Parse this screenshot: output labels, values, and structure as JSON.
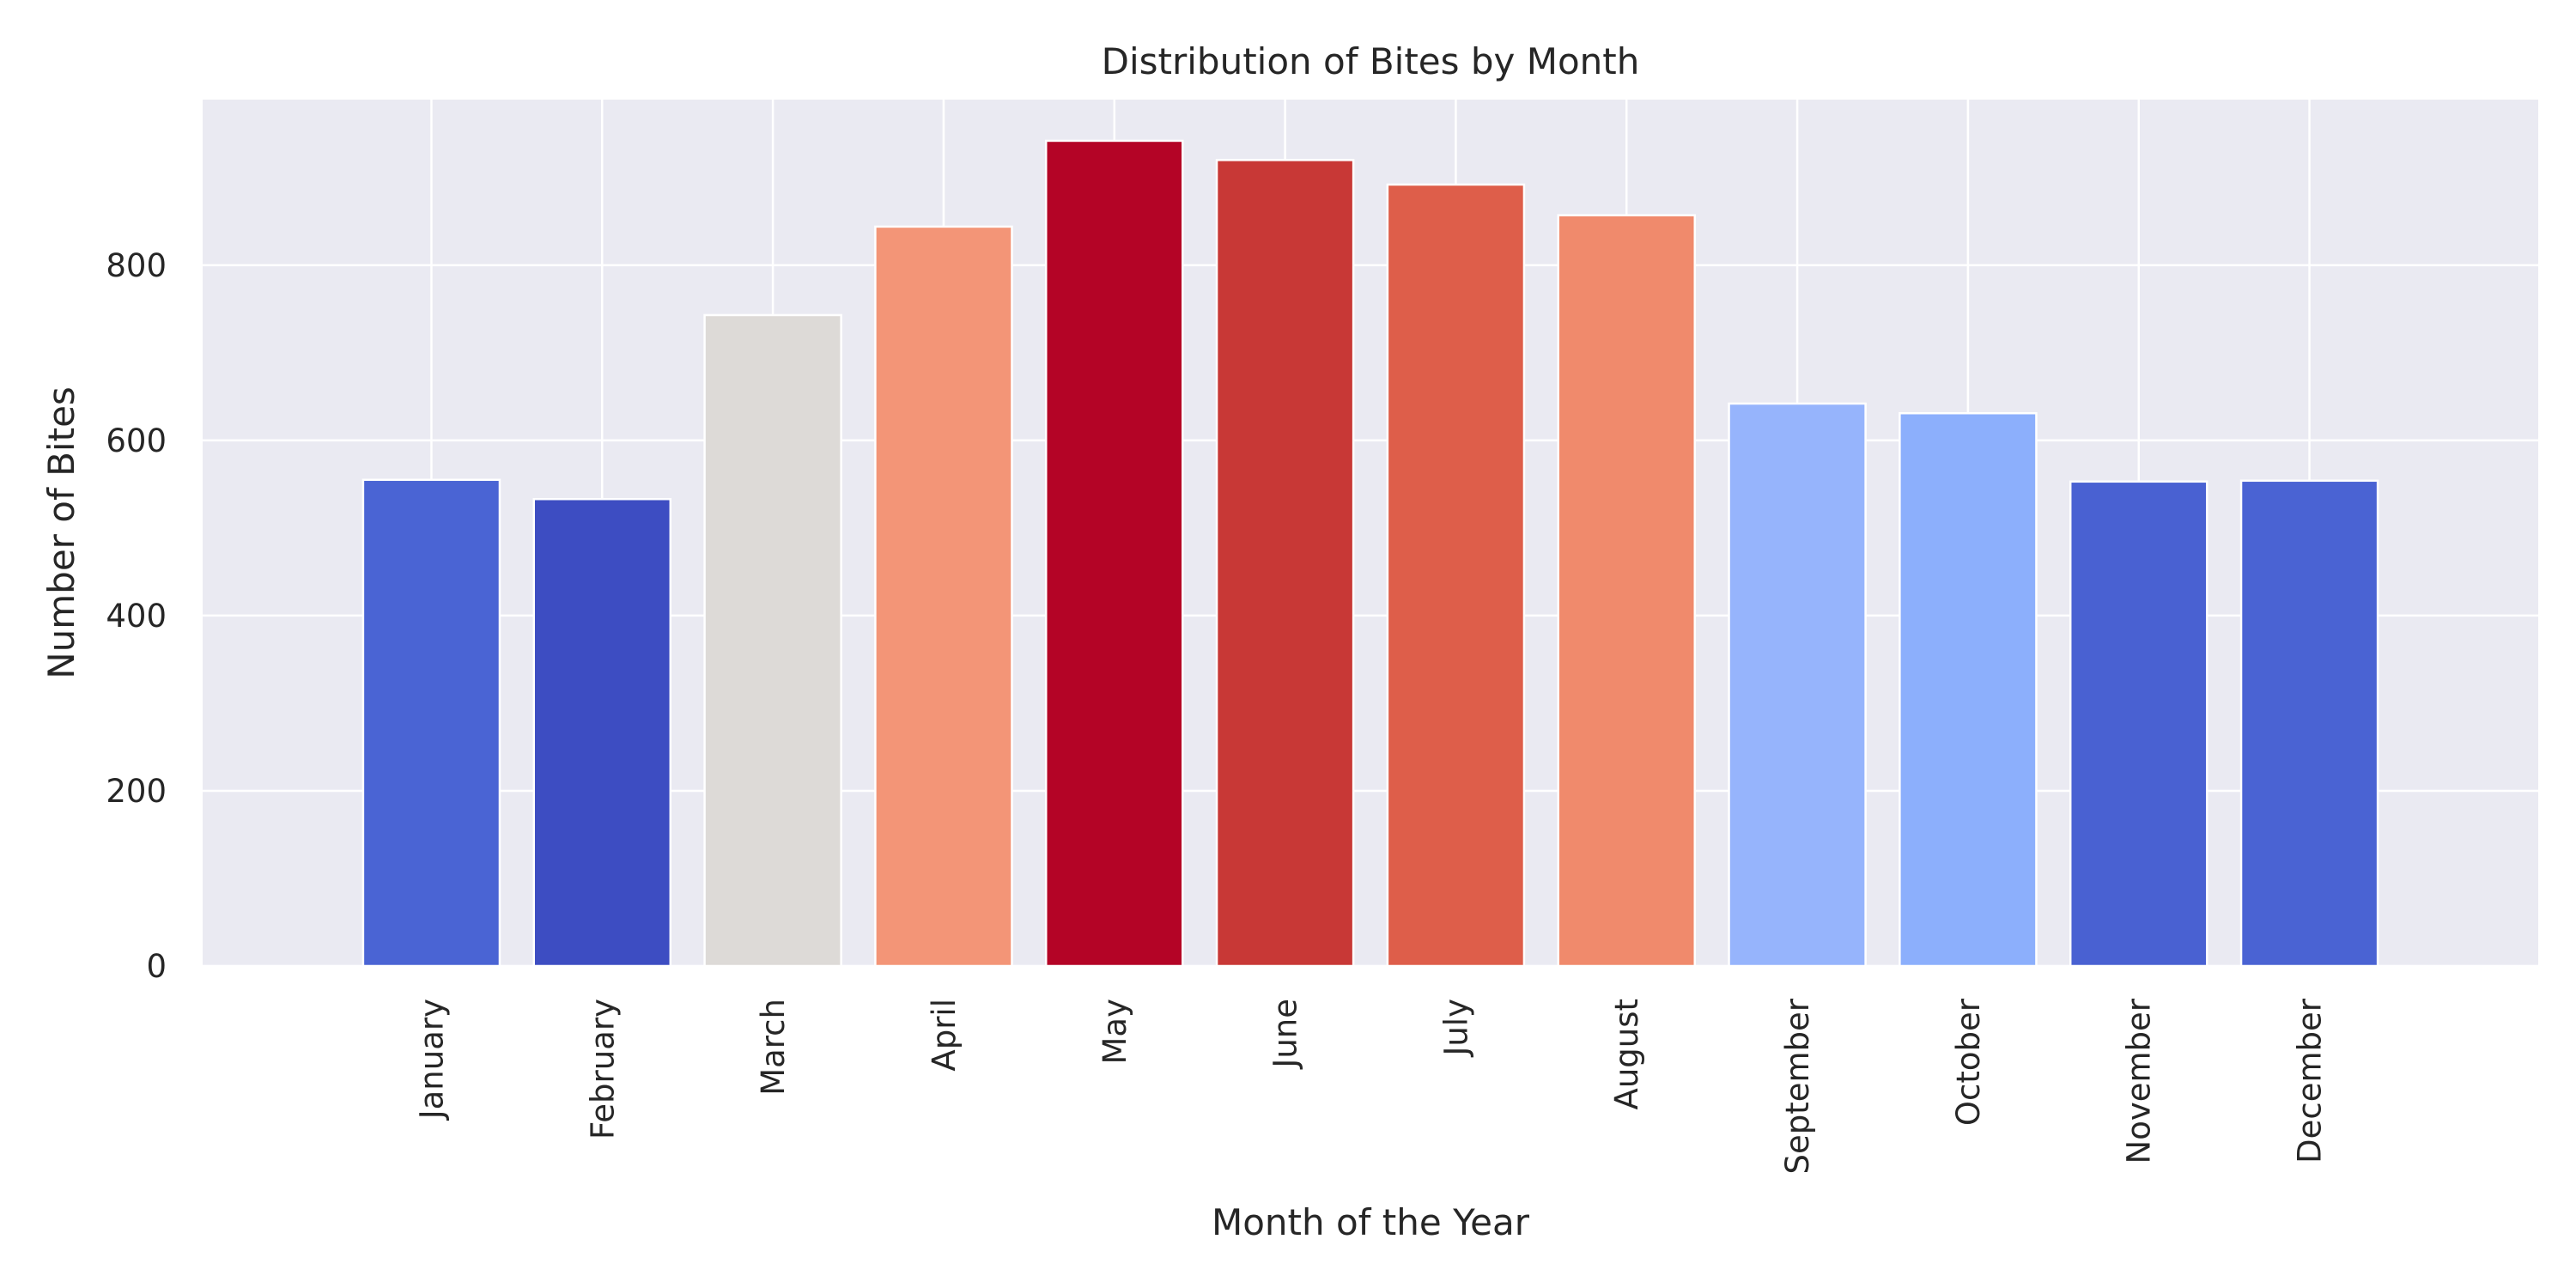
{
  "chart_data": {
    "type": "bar",
    "title": "Distribution of Bites by Month",
    "xlabel": "Month of the Year",
    "ylabel": "Number of Bites",
    "categories": [
      "January",
      "February",
      "March",
      "April",
      "May",
      "June",
      "July",
      "August",
      "September",
      "October",
      "November",
      "December"
    ],
    "values": [
      555,
      533,
      743,
      844,
      942,
      920,
      892,
      857,
      642,
      631,
      553,
      554
    ],
    "colors": [
      "#4a64d4",
      "#3d4dc2",
      "#dddad7",
      "#f39577",
      "#b40426",
      "#c83836",
      "#de5e4a",
      "#f08a6c",
      "#96b4fc",
      "#8caffc",
      "#4961d2",
      "#4a63d3"
    ],
    "ylim": [
      0,
      989
    ],
    "yticks": [
      0,
      200,
      400,
      600,
      800
    ],
    "grid": true,
    "background": "#eaeaf2",
    "grid_color": "#ffffff",
    "text_color": "#262626"
  }
}
